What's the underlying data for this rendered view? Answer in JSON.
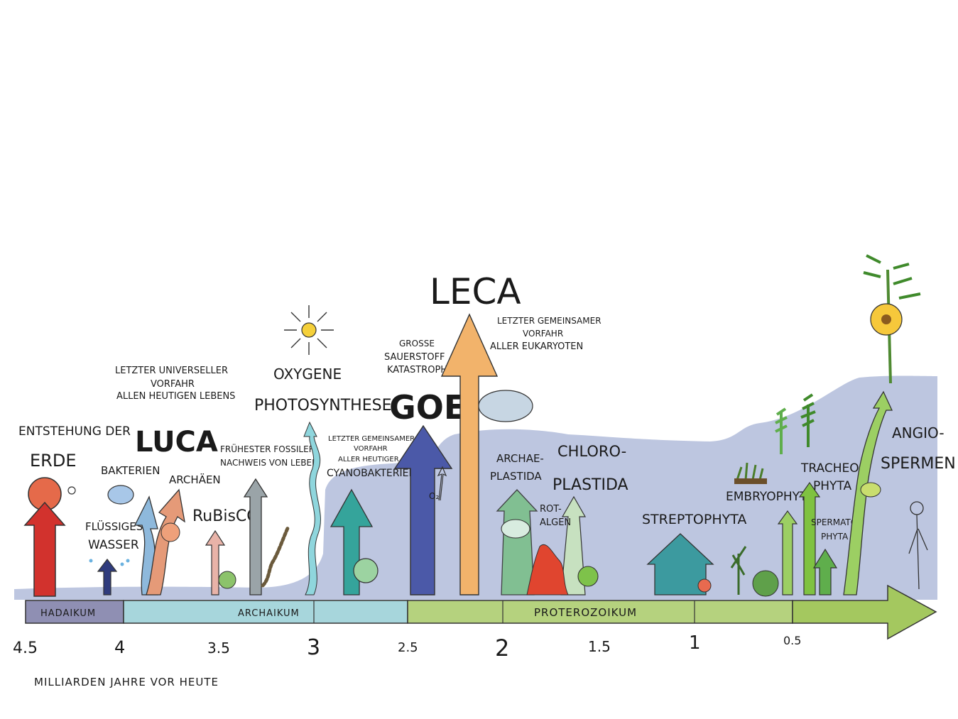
{
  "colors": {
    "background": "#ffffff",
    "atmosphere": "#b9c3de",
    "hadaikum": "#8f8fb3",
    "archaikum": "#a7d6dc",
    "proterozoikum": "#b5d27e",
    "phanerozoic": "#a4c85f",
    "arrow_red": "#d2322d",
    "arrow_navy": "#2f3b7d",
    "arrow_lightblue": "#8eb9dc",
    "arrow_salmon": "#e59a78",
    "arrow_pink": "#e8b3a8",
    "arrow_grey": "#9aa4a8",
    "arrow_cyan": "#8fd6dd",
    "arrow_teal": "#35a49b",
    "arrow_indigo": "#4b59a8",
    "arrow_orange": "#f2b36b",
    "arrow_green": "#7bbf8a",
    "arrow_pale": "#c7e1c0",
    "arrow_tealdark": "#3c9a9f",
    "arrow_lime": "#9ccf63",
    "arrow_bright": "#7fc241",
    "sun": "#f5d03a",
    "sphere_earth": "#e56a4a",
    "redalgae": "#e0452f"
  },
  "eras": [
    {
      "id": "hadaikum",
      "label": "HADAIKUM"
    },
    {
      "id": "archaikum",
      "label": "ARCHAIKUM"
    },
    {
      "id": "proterozoikum",
      "label": "PROTEROZOIKUM"
    }
  ],
  "axis": {
    "ticks": [
      "4.5",
      "4",
      "3.5",
      "3",
      "2.5",
      "2",
      "1.5",
      "1",
      "0.5"
    ],
    "label": "MILLIARDEN JAHRE VOR HEUTE"
  },
  "labels": {
    "entstehung_line1": "ENTSTEHUNG DER",
    "entstehung_line2": "ERDE",
    "fluessiges_line1": "FLÜSSIGES",
    "fluessiges_line2": "WASSER",
    "bakterien": "BAKTERIEN",
    "archaeen": "ARCHÄEN",
    "luca": "LUCA",
    "luca_desc_line1": "LETZTER UNIVERSELLER",
    "luca_desc_line2": "VORFAHR",
    "luca_desc_line3": "ALLEN HEUTIGEN LEBENS",
    "rubisco": "RuBisCO",
    "fossil_line1": "FRÜHESTER FOSSILER",
    "fossil_line2": "NACHWEIS VON LEBEN",
    "oxy_line1": "OXYGENE",
    "oxy_line2": "PHOTOSYNTHESE",
    "cyano_line1": "LETZTER GEMEINSAMER",
    "cyano_line2": "VORFAHR",
    "cyano_line3": "ALLER HEUTIGER",
    "cyano_line4": "CYANOBAKTERIEN",
    "goe_line1": "GROSSE",
    "goe_line2": "SAUERSTOFF",
    "goe_line3": "KATASTROPHE",
    "goe": "GOE",
    "o2": "O₂",
    "leca": "LECA",
    "leca_desc_line1": "LETZTER GEMEINSAMER",
    "leca_desc_line2": "VORFAHR",
    "leca_desc_line3": "ALLER EUKARYOTEN",
    "archae_line1": "ARCHAE-",
    "archae_line2": "PLASTIDA",
    "rot_line1": "ROT-",
    "rot_line2": "ALGEN",
    "chloro_line1": "CHLORO-",
    "chloro_line2": "PLASTIDA",
    "strepto": "STREPTOPHYTA",
    "embryo": "EMBRYOPHYTA",
    "tracheo_line1": "TRACHEO-",
    "tracheo_line2": "PHYTA",
    "sperma_line1": "SPERMATO-",
    "sperma_line2": "PHYTA",
    "angio_line1": "ANGIO-",
    "angio_line2": "SPERMEN"
  }
}
